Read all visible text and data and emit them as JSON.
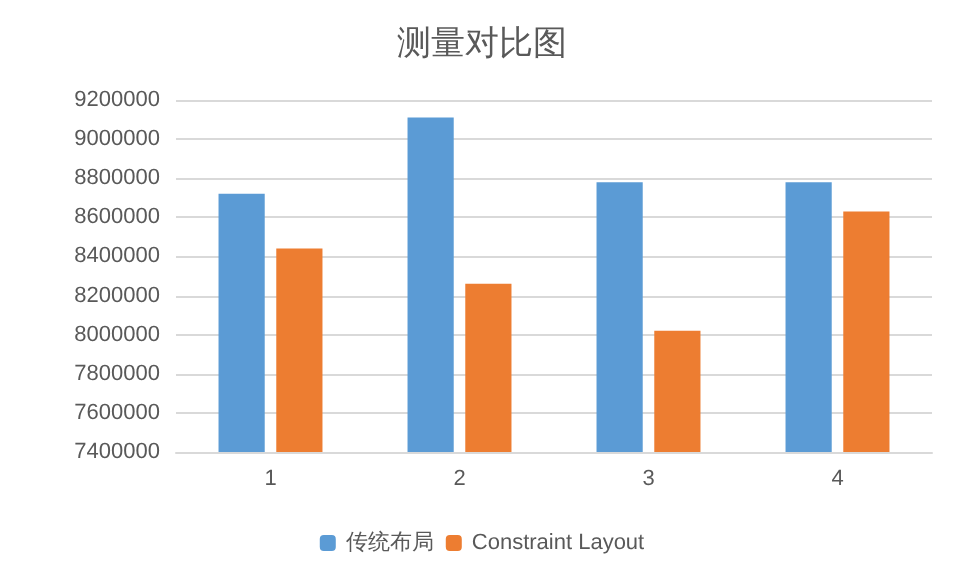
{
  "chart_data": {
    "type": "bar",
    "title": "测量对比图",
    "categories": [
      "1",
      "2",
      "3",
      "4"
    ],
    "series": [
      {
        "name": "传统布局",
        "color": "#5b9bd5",
        "values": [
          8720000,
          9110000,
          8780000,
          8780000
        ]
      },
      {
        "name": "Constraint Layout",
        "color": "#ed7d31",
        "values": [
          8440000,
          8260000,
          8020000,
          8630000
        ]
      }
    ],
    "ylim": [
      7400000,
      9200000
    ],
    "yticks": [
      7400000,
      7600000,
      7800000,
      8000000,
      8200000,
      8400000,
      8600000,
      8800000,
      9000000,
      9200000
    ],
    "grid": "y",
    "legend": "bottom"
  }
}
